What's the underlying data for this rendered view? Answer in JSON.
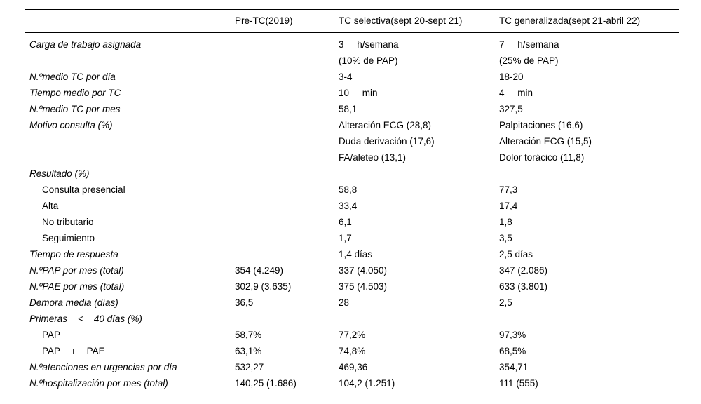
{
  "table": {
    "headers": [
      "",
      "Pre-TC(2019)",
      "TC selectiva(sept 20-sept 21)",
      "TC generalizada(sept 21-abril 22)"
    ],
    "rows": [
      {
        "label": "Carga de trabajo asignada",
        "italic": true,
        "indent": false,
        "values": [
          "",
          "3     h/semana\n(10% de PAP)",
          "7     h/semana\n(25% de PAP)"
        ]
      },
      {
        "label": "N.ºmedio TC por día",
        "italic": true,
        "indent": false,
        "values": [
          "",
          "3-4",
          "18-20"
        ]
      },
      {
        "label": "Tiempo medio por TC",
        "italic": true,
        "indent": false,
        "values": [
          "",
          "10     min",
          "4     min"
        ]
      },
      {
        "label": "N.ºmedio TC por mes",
        "italic": true,
        "indent": false,
        "values": [
          "",
          "58,1",
          "327,5"
        ]
      },
      {
        "label": "Motivo consulta (%)",
        "italic": true,
        "indent": false,
        "values": [
          "",
          "Alteración ECG (28,8)\nDuda derivación (17,6)\nFA/aleteo (13,1)",
          "Palpitaciones (16,6)\nAlteración ECG (15,5)\nDolor torácico (11,8)"
        ]
      },
      {
        "label": "Resultado (%)",
        "italic": true,
        "indent": false,
        "values": [
          "",
          "",
          ""
        ]
      },
      {
        "label": "Consulta presencial",
        "italic": false,
        "indent": true,
        "values": [
          "",
          "58,8",
          "77,3"
        ]
      },
      {
        "label": "Alta",
        "italic": false,
        "indent": true,
        "values": [
          "",
          "33,4",
          "17,4"
        ]
      },
      {
        "label": "No tributario",
        "italic": false,
        "indent": true,
        "values": [
          "",
          "6,1",
          "1,8"
        ]
      },
      {
        "label": "Seguimiento",
        "italic": false,
        "indent": true,
        "values": [
          "",
          "1,7",
          "3,5"
        ]
      },
      {
        "label": "Tiempo de respuesta",
        "italic": true,
        "indent": false,
        "values": [
          "",
          "1,4 días",
          "2,5 días"
        ]
      },
      {
        "label": "N.ºPAP por mes (total)",
        "italic": true,
        "indent": false,
        "values": [
          "354 (4.249)",
          "337 (4.050)",
          "347 (2.086)"
        ]
      },
      {
        "label": "N.ºPAE por mes (total)",
        "italic": true,
        "indent": false,
        "values": [
          "302,9 (3.635)",
          "375 (4.503)",
          "633 (3.801)"
        ]
      },
      {
        "label": "Demora media (días)",
        "italic": true,
        "indent": false,
        "values": [
          "36,5",
          "28",
          "2,5"
        ]
      },
      {
        "label": "Primeras    <    40 días (%)",
        "italic": true,
        "indent": false,
        "values": [
          "",
          "",
          ""
        ]
      },
      {
        "label": "PAP",
        "italic": false,
        "indent": true,
        "values": [
          "58,7%",
          "77,2%",
          "97,3%"
        ]
      },
      {
        "label": "PAP    +    PAE",
        "italic": false,
        "indent": true,
        "values": [
          "63,1%",
          "74,8%",
          "68,5%"
        ]
      },
      {
        "label": "N.ºatenciones en urgencias por día",
        "italic": true,
        "indent": false,
        "values": [
          "532,27",
          "469,36",
          "354,71"
        ]
      },
      {
        "label": "N.ºhospitalización por mes (total)",
        "italic": true,
        "indent": false,
        "values": [
          "140,25 (1.686)",
          "104,2 (1.251)",
          "111 (555)"
        ]
      }
    ]
  }
}
